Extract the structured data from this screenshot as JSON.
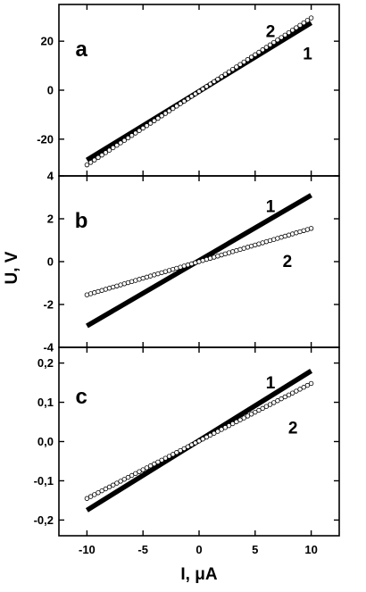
{
  "chart_data": {
    "type": "line",
    "xlabel": "I, μA",
    "ylabel": "U, V",
    "x_ticks": [
      "-10",
      "-5",
      "0",
      "5",
      "10"
    ],
    "xlim": [
      -12.5,
      12.5
    ],
    "grid": false,
    "panels": [
      {
        "label": "a",
        "ylim": [
          -35,
          35
        ],
        "y_ticks": [
          "-20",
          "0",
          "20"
        ],
        "series": [
          {
            "name": "1",
            "style": "thick-solid",
            "x": [
              -10,
              10
            ],
            "y": [
              -28.5,
              27.5
            ]
          },
          {
            "name": "2",
            "style": "open-circles",
            "x": [
              -10,
              10
            ],
            "y": [
              -30.5,
              29.5
            ]
          }
        ]
      },
      {
        "label": "b",
        "ylim": [
          -4,
          4
        ],
        "y_ticks": [
          "-4",
          "-2",
          "0",
          "2",
          "4"
        ],
        "series": [
          {
            "name": "1",
            "style": "thick-solid",
            "x": [
              -10,
              10
            ],
            "y": [
              -3.0,
              3.1
            ]
          },
          {
            "name": "2",
            "style": "open-circles",
            "x": [
              -10,
              10
            ],
            "y": [
              -1.55,
              1.55
            ]
          }
        ]
      },
      {
        "label": "c",
        "ylim": [
          -0.24,
          0.24
        ],
        "y_ticks": [
          "-0,2",
          "-0,1",
          "0,0",
          "0,1",
          "0,2"
        ],
        "series": [
          {
            "name": "1",
            "style": "thick-solid",
            "x": [
              -10,
              10
            ],
            "y": [
              -0.175,
              0.18
            ]
          },
          {
            "name": "2",
            "style": "open-circles",
            "x": [
              -10,
              10
            ],
            "y": [
              -0.145,
              0.148
            ]
          }
        ]
      }
    ]
  }
}
